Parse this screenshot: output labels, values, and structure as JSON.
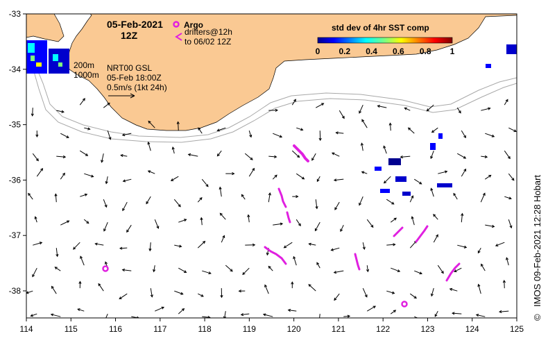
{
  "title": {
    "date": "05-Feb-2021",
    "time": "12Z"
  },
  "legend": {
    "argo_label": "Argo",
    "drifters_line1": "drifters@12h",
    "drifters_line2": "to 06/02 12Z",
    "colorbar_title": "std dev of 4hr SST comp",
    "colorbar_ticks": [
      "0",
      "0.2",
      "0.4",
      "0.6",
      "0.8",
      "1"
    ],
    "argo_color": "#e020e0",
    "drifter_color": "#e020e0"
  },
  "contours": {
    "label_200": "200m",
    "label_1000": "1000m"
  },
  "product": {
    "line1": "NRT00 GSL",
    "line2": "05-Feb 18:00Z",
    "scale_label": "0.5m/s (1kt 24h)"
  },
  "credit": "IMOS 09-Feb-2021 12:28 Hobart",
  "credit_symbol": "©",
  "axes": {
    "x_ticks": [
      "114",
      "115",
      "116",
      "117",
      "118",
      "119",
      "120",
      "121",
      "122",
      "123",
      "124",
      "125"
    ],
    "y_ticks": [
      "-33",
      "-34",
      "-35",
      "-36",
      "-37",
      "-38"
    ]
  },
  "colors": {
    "land": "#fac993",
    "ocean": "#ffffff",
    "isobath": "#a8a8a8",
    "arrow": "#000000"
  }
}
